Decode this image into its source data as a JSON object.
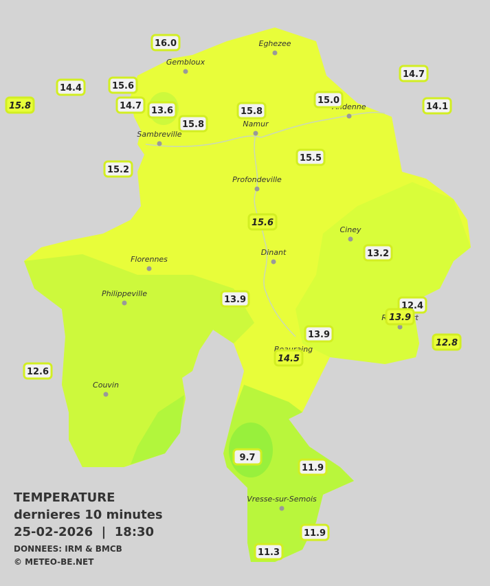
{
  "legend": {
    "title": "TEMPERATURE",
    "subtitle": "dernieres 10 minutes",
    "datetime": "25-02-2026  |  18:30",
    "source": "DONNEES: IRM & BMCB",
    "copyright": "© METEO-BE.NET"
  },
  "cities": [
    {
      "name": "Eghezee"
    },
    {
      "name": "Gembloux"
    },
    {
      "name": "Andenne"
    },
    {
      "name": "Namur"
    },
    {
      "name": "Sambreville"
    },
    {
      "name": "Profondeville"
    },
    {
      "name": "Ciney"
    },
    {
      "name": "Florennes"
    },
    {
      "name": "Dinant"
    },
    {
      "name": "Philippeville"
    },
    {
      "name": "Rochefort"
    },
    {
      "name": "Beauraing"
    },
    {
      "name": "Couvin"
    },
    {
      "name": "Vresse-sur-Semois"
    }
  ],
  "stations": [
    {
      "label": "16.0",
      "italic": false
    },
    {
      "label": "14.4",
      "italic": false
    },
    {
      "label": "15.6",
      "italic": false
    },
    {
      "label": "15.8",
      "italic": true
    },
    {
      "label": "14.7",
      "italic": false
    },
    {
      "label": "13.6",
      "italic": false
    },
    {
      "label": "15.8",
      "italic": false
    },
    {
      "label": "15.8",
      "italic": false
    },
    {
      "label": "15.0",
      "italic": false
    },
    {
      "label": "14.7",
      "italic": false
    },
    {
      "label": "14.1",
      "italic": false
    },
    {
      "label": "15.2",
      "italic": false
    },
    {
      "label": "15.5",
      "italic": false
    },
    {
      "label": "15.6",
      "italic": true
    },
    {
      "label": "13.2",
      "italic": false
    },
    {
      "label": "13.9",
      "italic": false
    },
    {
      "label": "12.4",
      "italic": false
    },
    {
      "label": "13.9",
      "italic": true
    },
    {
      "label": "12.8",
      "italic": true
    },
    {
      "label": "13.9",
      "italic": false
    },
    {
      "label": "14.5",
      "italic": true
    },
    {
      "label": "12.6",
      "italic": false
    },
    {
      "label": "9.7",
      "italic": false
    },
    {
      "label": "11.9",
      "italic": false
    },
    {
      "label": "11.9",
      "italic": false
    },
    {
      "label": "11.3",
      "italic": false
    }
  ]
}
